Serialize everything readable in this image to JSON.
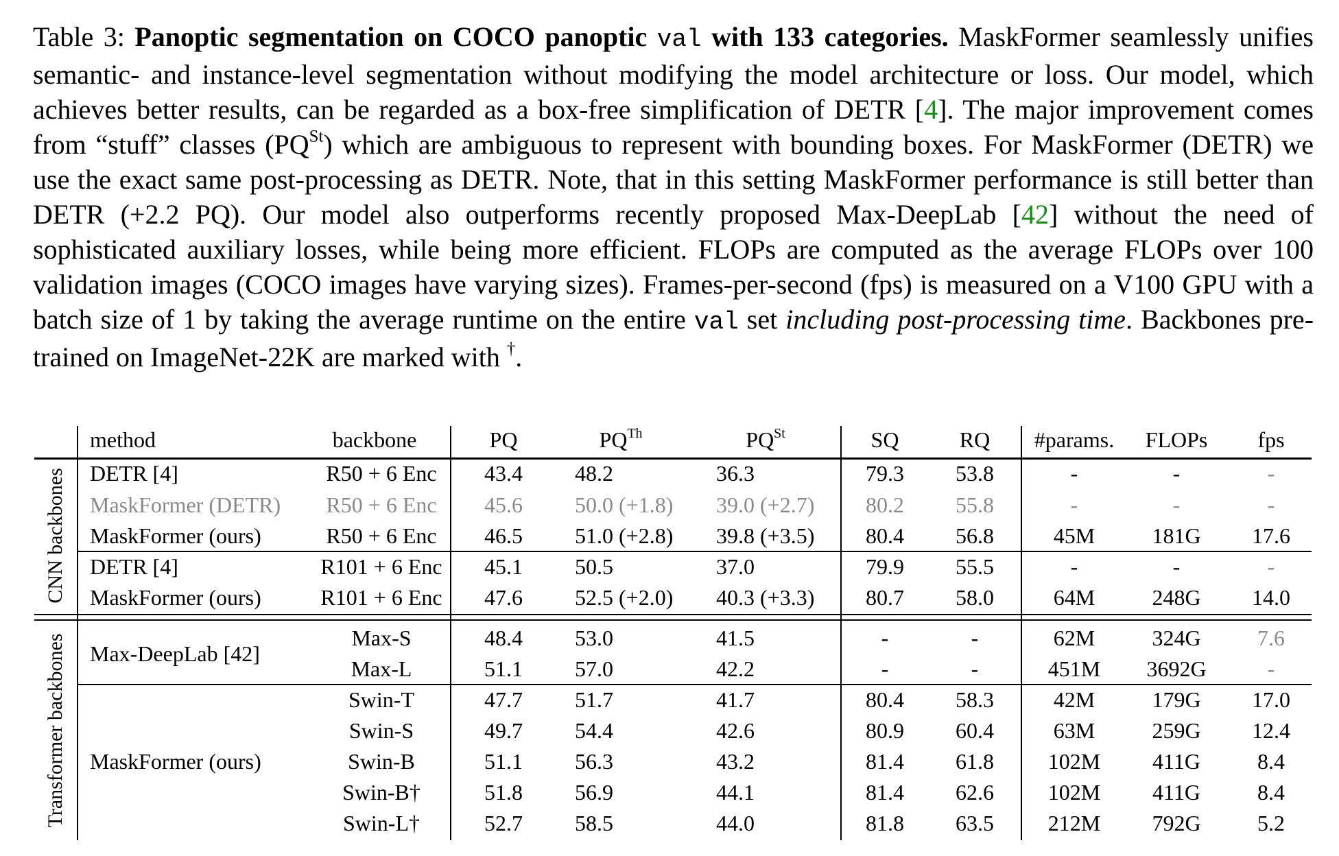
{
  "caption": {
    "parts": [
      "Table 3: ",
      "Panoptic segmentation on COCO panoptic ",
      "val",
      " with 133 categories.",
      " MaskFormer seamlessly unifies semantic- and instance-level segmentation without modifying the model architecture or loss. Our model, which achieves better results, can be regarded as a box-free simplification of DETR [",
      "4",
      "]. The major improvement comes from “stuff” classes (PQ",
      "St",
      ") which are ambiguous to represent with bounding boxes. For MaskFormer (DETR) we use the exact same post-processing as DETR. Note, that in this setting MaskFormer performance is still better than DETR (+2.2 PQ). Our model also outperforms recently proposed Max-DeepLab [",
      "42",
      "] without the need of sophisticated auxiliary losses, while being more efficient. FLOPs are computed as the average FLOPs over 100 validation images (COCO images have varying sizes). Frames-per-second (fps) is measured on a V100 GPU with a batch size of 1 by taking the average runtime on the entire ",
      "val",
      " set ",
      "including post-processing time",
      ". Backbones pre-trained on ImageNet-22K are marked with ",
      "†",
      "."
    ]
  },
  "table": {
    "headers": [
      "method",
      "backbone",
      "PQ",
      [
        "PQ",
        "Th"
      ],
      [
        "PQ",
        "St"
      ],
      "SQ",
      "RQ",
      "#params.",
      "FLOPs",
      "fps"
    ],
    "groups": [
      {
        "label": "CNN backbones",
        "blocks": [
          {
            "method": [
              "DETR [",
              "4",
              "]"
            ],
            "rows": [
              [
                "R50 + 6 Enc",
                "43.4",
                "48.2",
                "36.3",
                "79.3",
                "53.8",
                "-",
                "-",
                "-"
              ]
            ]
          },
          {
            "method": "MaskFormer (DETR)",
            "rows": [
              [
                "R50 + 6 Enc",
                "45.6",
                "50.0 (+1.8)",
                "39.0 (+2.7)",
                "80.2",
                "55.8",
                "-",
                "-",
                "-"
              ]
            ]
          },
          {
            "method": [
              "MaskFormer",
              " (ours)"
            ],
            "rows": [
              [
                "R50 + 6 Enc",
                "46.5",
                [
                  "51.0",
                  " (+2.8)"
                ],
                [
                  "39.8",
                  " (+3.5)"
                ],
                "80.4",
                "56.8",
                "45M",
                "181G",
                "17.6"
              ]
            ]
          },
          {
            "method": [
              "DETR [",
              "4",
              "]"
            ],
            "rows": [
              [
                "R101 + 6 Enc",
                "45.1",
                "50.5",
                "37.0",
                "79.9",
                "55.5",
                "-",
                "-",
                "-"
              ]
            ]
          },
          {
            "method": [
              "MaskFormer",
              " (ours)"
            ],
            "rows": [
              [
                "R101 + 6 Enc",
                "47.6",
                [
                  "52.5",
                  " (+2.0)"
                ],
                [
                  "40.3",
                  " (+3.3)"
                ],
                "80.7",
                "58.0",
                "64M",
                "248G",
                "14.0"
              ]
            ]
          }
        ]
      },
      {
        "label": "Transformer backbones",
        "blocks": [
          {
            "method": [
              "Max-DeepLab [",
              "42",
              "]"
            ],
            "rows": [
              [
                "Max-S",
                "48.4",
                "53.0",
                "41.5",
                "-",
                "-",
                "62M",
                "324G",
                "7.6"
              ],
              [
                "Max-L",
                "51.1",
                "57.0",
                "42.2",
                "-",
                "-",
                "451M",
                "3692G",
                "-"
              ]
            ]
          },
          {
            "method": [
              "MaskFormer",
              " (ours)"
            ],
            "rows": [
              [
                "Swin-T",
                "47.7",
                "51.7",
                "41.7",
                "80.4",
                "58.3",
                "42M",
                "179G",
                "17.0"
              ],
              [
                "Swin-S",
                "49.7",
                "54.4",
                "42.6",
                "80.9",
                "60.4",
                "63M",
                "259G",
                "12.4"
              ],
              [
                "Swin-B",
                "51.1",
                "56.3",
                "43.2",
                "81.4",
                "61.8",
                "102M",
                "411G",
                "8.4"
              ],
              [
                [
                  "Swin-B",
                  "†"
                ],
                "51.8",
                "56.9",
                "44.1",
                "81.4",
                "62.6",
                "102M",
                "411G",
                "8.4"
              ],
              [
                [
                  "Swin-L",
                  "†"
                ],
                "52.7",
                "58.5",
                "44.0",
                "81.8",
                "63.5",
                "212M",
                "792G",
                "5.2"
              ]
            ]
          }
        ]
      }
    ]
  }
}
